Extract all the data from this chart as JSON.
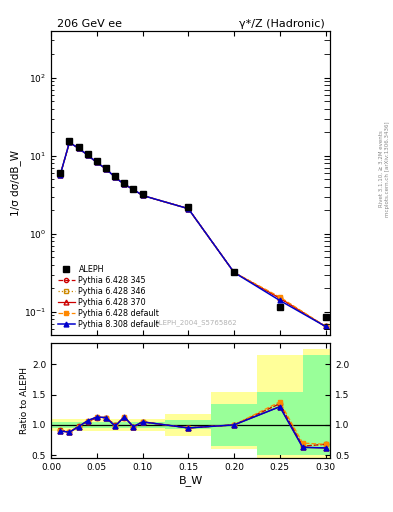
{
  "title_left": "206 GeV ee",
  "title_right": "γ*/Z (Hadronic)",
  "ylabel_main": "1/σ dσ/dB_W",
  "ylabel_ratio": "Ratio to ALEPH",
  "xlabel": "B_W",
  "right_label1": "Rivet 3.1.10, ≥ 3.2M events",
  "right_label2": "mcplots.cern.ch [arXiv:1306.3436]",
  "watermark": "ALEPH_2004_S5765862",
  "bw_centers": [
    0.01,
    0.02,
    0.03,
    0.04,
    0.05,
    0.06,
    0.07,
    0.08,
    0.09,
    0.1,
    0.15,
    0.2,
    0.25,
    0.3
  ],
  "aleph_y": [
    6.0,
    15.5,
    13.0,
    10.5,
    8.5,
    7.0,
    5.5,
    4.5,
    3.8,
    3.2,
    2.2,
    0.32,
    0.115,
    0.085
  ],
  "pythia_345_y": [
    5.7,
    14.8,
    12.5,
    10.2,
    8.2,
    6.8,
    5.3,
    4.3,
    3.7,
    3.1,
    2.1,
    0.32,
    0.15,
    0.065
  ],
  "pythia_346_y": [
    5.7,
    14.8,
    12.5,
    10.2,
    8.2,
    6.8,
    5.3,
    4.3,
    3.7,
    3.1,
    2.1,
    0.32,
    0.15,
    0.065
  ],
  "pythia_370_y": [
    5.7,
    14.8,
    12.5,
    10.2,
    8.2,
    6.8,
    5.3,
    4.3,
    3.7,
    3.1,
    2.1,
    0.32,
    0.15,
    0.065
  ],
  "pythia_def_y": [
    5.7,
    14.8,
    12.5,
    10.2,
    8.2,
    6.8,
    5.3,
    4.3,
    3.7,
    3.1,
    2.1,
    0.32,
    0.155,
    0.065
  ],
  "pythia_8_y": [
    5.7,
    14.8,
    12.5,
    10.2,
    8.2,
    6.8,
    5.3,
    4.3,
    3.7,
    3.1,
    2.1,
    0.32,
    0.14,
    0.065
  ],
  "ratio_345": [
    0.92,
    0.88,
    0.98,
    1.05,
    1.12,
    1.12,
    1.0,
    1.12,
    0.97,
    1.05,
    0.95,
    1.0,
    1.35,
    0.65,
    0.68
  ],
  "ratio_346": [
    0.92,
    0.88,
    0.98,
    1.05,
    1.12,
    1.12,
    1.0,
    1.12,
    0.97,
    1.05,
    0.95,
    1.0,
    1.35,
    0.65,
    0.68
  ],
  "ratio_370": [
    0.9,
    0.88,
    0.97,
    1.07,
    1.13,
    1.12,
    0.98,
    1.13,
    0.97,
    1.05,
    0.95,
    1.0,
    1.3,
    0.63,
    0.62
  ],
  "ratio_def": [
    0.9,
    0.88,
    0.97,
    1.07,
    1.13,
    1.12,
    0.98,
    1.13,
    0.97,
    1.05,
    0.95,
    1.0,
    1.38,
    0.7,
    0.68
  ],
  "ratio_8": [
    0.9,
    0.88,
    0.97,
    1.07,
    1.13,
    1.12,
    0.98,
    1.13,
    0.97,
    1.05,
    0.95,
    1.0,
    1.3,
    0.63,
    0.62
  ],
  "ratio_bw": [
    0.01,
    0.02,
    0.03,
    0.04,
    0.05,
    0.06,
    0.07,
    0.08,
    0.09,
    0.1,
    0.15,
    0.2,
    0.25,
    0.275,
    0.3
  ],
  "color_345": "#cc0000",
  "color_346": "#cc8800",
  "color_370": "#cc0000",
  "color_def": "#ff8800",
  "color_8": "#0000cc",
  "ylim_main": [
    0.05,
    400
  ],
  "ylim_ratio": [
    0.45,
    2.35
  ],
  "xlim": [
    0.0,
    0.305
  ],
  "bin_edges": [
    0.0,
    0.015,
    0.025,
    0.035,
    0.045,
    0.055,
    0.065,
    0.075,
    0.085,
    0.095,
    0.125,
    0.175,
    0.225,
    0.275,
    0.305
  ],
  "green_hi": [
    1.05,
    1.05,
    1.05,
    1.05,
    1.05,
    1.05,
    1.05,
    1.05,
    1.05,
    1.05,
    1.08,
    1.35,
    1.55,
    2.15
  ],
  "green_lo": [
    0.95,
    0.95,
    0.95,
    0.95,
    0.95,
    0.95,
    0.95,
    0.95,
    0.95,
    0.95,
    0.93,
    0.65,
    0.5,
    0.5
  ],
  "yellow_hi": [
    1.1,
    1.1,
    1.1,
    1.1,
    1.1,
    1.1,
    1.1,
    1.1,
    1.1,
    1.1,
    1.18,
    1.55,
    2.15,
    2.25
  ],
  "yellow_lo": [
    0.9,
    0.9,
    0.9,
    0.9,
    0.9,
    0.9,
    0.9,
    0.9,
    0.9,
    0.9,
    0.82,
    0.6,
    0.45,
    0.45
  ]
}
